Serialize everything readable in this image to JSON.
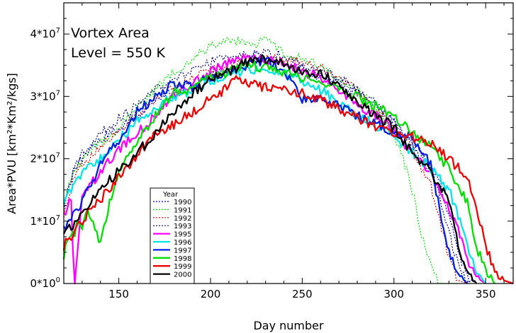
{
  "chart_data": {
    "type": "line",
    "title": "Vortex Area",
    "subtitle": "Level = 550 K",
    "xlabel": "Day number",
    "ylabel": "Area*PVU [km²*Km²/kgs]",
    "xlim": [
      120,
      365
    ],
    "ylim": [
      0,
      45000000
    ],
    "x_ticks": [
      150,
      200,
      250,
      300,
      350
    ],
    "y_ticks": [
      {
        "value": 0,
        "mantissa": "0*10",
        "exp": "0"
      },
      {
        "value": 10000000,
        "mantissa": "1*10",
        "exp": "7"
      },
      {
        "value": 20000000,
        "mantissa": "2*10",
        "exp": "7"
      },
      {
        "value": 30000000,
        "mantissa": "3*10",
        "exp": "7"
      },
      {
        "value": 40000000,
        "mantissa": "4*10",
        "exp": "7"
      }
    ],
    "grid": false,
    "legend_title": "Year",
    "legend_position": "bottom-left",
    "series": [
      {
        "name": "1990",
        "color": "#0000cc",
        "style": "dotted",
        "x": [
          120,
          125,
          130,
          140,
          150,
          160,
          170,
          180,
          190,
          200,
          210,
          220,
          225,
          230,
          240,
          250,
          260,
          270,
          280,
          290,
          300,
          310,
          315,
          320,
          325,
          330,
          335,
          340,
          345
        ],
        "y": [
          12,
          18,
          21,
          23,
          25,
          27,
          29.5,
          31,
          32,
          33.5,
          35,
          36,
          36.5,
          36,
          35.5,
          34.5,
          33,
          32,
          30.5,
          28.5,
          26,
          22.5,
          21,
          19,
          16,
          11,
          5,
          1,
          0
        ]
      },
      {
        "name": "1991",
        "color": "#00dd00",
        "style": "dotted",
        "x": [
          120,
          125,
          130,
          140,
          150,
          160,
          170,
          180,
          190,
          200,
          210,
          220,
          225,
          230,
          240,
          250,
          260,
          270,
          280,
          290,
          300,
          305,
          310,
          315,
          320,
          325,
          330,
          335
        ],
        "y": [
          13,
          17.5,
          20,
          22.5,
          25,
          28,
          31,
          34,
          36,
          38,
          39,
          38.5,
          38.5,
          39,
          37,
          36,
          35,
          33,
          31,
          28,
          24,
          20,
          15,
          8,
          3,
          0,
          0,
          0
        ]
      },
      {
        "name": "1992",
        "color": "#cc0000",
        "style": "dotted",
        "x": [
          120,
          125,
          130,
          140,
          150,
          160,
          170,
          180,
          190,
          200,
          210,
          220,
          230,
          240,
          250,
          260,
          270,
          280,
          290,
          300,
          310,
          320,
          325,
          330,
          335,
          340
        ],
        "y": [
          11,
          16,
          19,
          22,
          24.5,
          27,
          29.5,
          31.5,
          33,
          34,
          35,
          35.5,
          36,
          36,
          35.5,
          34.5,
          33,
          31,
          28,
          25,
          21,
          16,
          10,
          4,
          0.5,
          0
        ]
      },
      {
        "name": "1993",
        "color": "#000066",
        "style": "dotted",
        "x": [
          120,
          125,
          130,
          140,
          150,
          160,
          170,
          180,
          190,
          200,
          210,
          220,
          230,
          240,
          250,
          260,
          270,
          280,
          290,
          300,
          310,
          320,
          325,
          330,
          335,
          340
        ],
        "y": [
          12,
          18,
          20,
          24,
          26.5,
          28.5,
          31,
          32.5,
          34,
          35.5,
          36.5,
          36.5,
          37,
          36.5,
          35,
          34,
          33,
          31,
          29,
          26,
          22,
          18,
          14,
          8,
          3,
          0
        ]
      },
      {
        "name": "1995",
        "color": "#ff00ff",
        "style": "solid-bold",
        "x": [
          120,
          124,
          125,
          126,
          130,
          140,
          150,
          160,
          170,
          180,
          190,
          200,
          210,
          220,
          230,
          240,
          250,
          260,
          270,
          280,
          290,
          300,
          310,
          320,
          330,
          335,
          340,
          345,
          350
        ],
        "y": [
          11,
          14,
          6,
          0,
          14,
          18,
          21.5,
          24,
          27,
          30,
          32,
          34,
          35.5,
          36.5,
          36,
          35.5,
          34,
          33,
          31,
          28.5,
          27,
          24.5,
          21,
          18,
          12,
          9,
          4,
          1,
          0
        ]
      },
      {
        "name": "1996",
        "color": "#00e5e5",
        "style": "solid-bold",
        "x": [
          120,
          130,
          140,
          150,
          160,
          170,
          180,
          190,
          200,
          210,
          220,
          230,
          240,
          250,
          260,
          270,
          280,
          290,
          300,
          310,
          320,
          330,
          335,
          340,
          345,
          350
        ],
        "y": [
          13,
          17.5,
          20,
          23,
          26,
          28,
          30,
          31,
          32.5,
          33.5,
          34,
          34.5,
          33.5,
          32.5,
          31,
          29,
          27,
          25.5,
          23.5,
          21,
          18.5,
          15,
          11,
          6,
          2,
          0
        ]
      },
      {
        "name": "1997",
        "color": "#0022dd",
        "style": "solid-bold",
        "x": [
          120,
          130,
          140,
          150,
          160,
          170,
          180,
          190,
          200,
          210,
          220,
          230,
          240,
          250,
          260,
          270,
          280,
          290,
          300,
          310,
          320,
          325,
          330,
          335,
          340
        ],
        "y": [
          9,
          13,
          19,
          23,
          27.5,
          30,
          32,
          31.5,
          33,
          34,
          35,
          36,
          34,
          29.5,
          30,
          28.5,
          27,
          25.5,
          24,
          23.5,
          19,
          12,
          5,
          1.5,
          0
        ]
      },
      {
        "name": "1998",
        "color": "#00dd00",
        "style": "solid-bold",
        "x": [
          120,
          122,
          124,
          126,
          128,
          130,
          133,
          136,
          140,
          145,
          150,
          160,
          170,
          180,
          190,
          200,
          210,
          220,
          230,
          240,
          250,
          260,
          270,
          280,
          290,
          300,
          310,
          320,
          330,
          340,
          345,
          350,
          355
        ],
        "y": [
          4,
          7,
          8,
          8,
          10,
          9,
          12,
          10,
          6.5,
          13,
          18,
          23,
          27,
          30.5,
          31.5,
          33,
          34,
          35,
          34.5,
          34,
          33,
          32,
          31,
          30,
          28.5,
          27,
          24,
          22,
          18.5,
          13,
          6,
          2,
          0
        ]
      },
      {
        "name": "1999",
        "color": "#ee0000",
        "style": "solid-bold",
        "x": [
          120,
          130,
          140,
          150,
          160,
          170,
          180,
          190,
          200,
          210,
          215,
          220,
          230,
          240,
          250,
          260,
          270,
          280,
          290,
          300,
          310,
          320,
          330,
          340,
          345,
          350,
          355,
          360,
          365
        ],
        "y": [
          6,
          10,
          13.5,
          17,
          20.5,
          24,
          25.5,
          27.5,
          29.5,
          31.5,
          33,
          32,
          31.5,
          31,
          30.5,
          29.5,
          28,
          26.5,
          25,
          24,
          23.5,
          22.5,
          20,
          17,
          12,
          6,
          2,
          0.5,
          0
        ]
      },
      {
        "name": "2000",
        "color": "#000000",
        "style": "solid-bold",
        "x": [
          120,
          130,
          140,
          150,
          160,
          170,
          180,
          190,
          200,
          210,
          220,
          230,
          240,
          250,
          260,
          270,
          280,
          290,
          300,
          310,
          320,
          330,
          335,
          340,
          345
        ],
        "y": [
          8,
          11,
          15,
          18,
          21,
          24,
          27.5,
          30.5,
          32.5,
          34,
          35.5,
          36,
          35,
          34,
          33.5,
          32,
          29,
          27,
          25,
          21,
          18,
          13,
          6,
          2,
          0
        ]
      }
    ]
  }
}
